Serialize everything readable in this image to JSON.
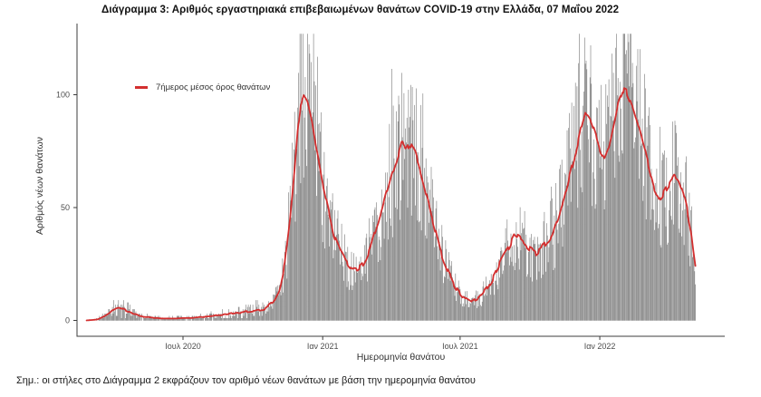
{
  "title": "Διάγραμμα 3: Αριθμός εργαστηριακά επιβεβαιωμένων θανάτων COVID-19 στην Ελλάδα, 07 Μαΐου 2022",
  "note": "Σημ.: οι στήλες στο Διάγραμμα 2 εκφράζουν τον αριθμό νέων θανάτων με βάση την ημερομηνία θανάτου",
  "chart_data": {
    "type": "bar",
    "xlabel": "Ημερομηνία θανάτου",
    "ylabel": "Αριθμός νέων θανάτων",
    "legend_label": "7ήμερος μέσος όρος θανάτων",
    "legend_position": "top-left-inside",
    "grid": false,
    "bar_color": "#7b7b7b",
    "line_color": "#d32f2f",
    "axis_color": "#3c3c3c",
    "tick_label_color": "#4d4d4d",
    "y_ticks": [
      0,
      50,
      100
    ],
    "ylim": [
      0,
      130
    ],
    "x_ticks": [
      {
        "label": "Ιουλ 2020",
        "date": "2020-07-01"
      },
      {
        "label": "Ιαν 2021",
        "date": "2021-01-01"
      },
      {
        "label": "Ιουλ 2021",
        "date": "2021-07-01"
      },
      {
        "label": "Ιαν 2022",
        "date": "2022-01-01"
      }
    ],
    "date_range": [
      "2020-02-25",
      "2022-05-07"
    ],
    "series": [
      {
        "name": "daily-deaths-bars",
        "type": "bar",
        "description": "daily laboratory-confirmed COVID-19 deaths by date of death",
        "derived_from": "ma7_anchors",
        "noise": [
          0.55,
          1.45
        ],
        "max_value": 127,
        "seed": 7
      },
      {
        "name": "7day-moving-average",
        "type": "line",
        "anchors": [
          [
            "2020-02-25",
            0
          ],
          [
            "2020-03-10",
            0.4
          ],
          [
            "2020-03-18",
            1.6
          ],
          [
            "2020-03-26",
            3.2
          ],
          [
            "2020-04-03",
            5
          ],
          [
            "2020-04-10",
            5.5
          ],
          [
            "2020-04-18",
            4.4
          ],
          [
            "2020-04-28",
            3
          ],
          [
            "2020-05-10",
            1.6
          ],
          [
            "2020-06-05",
            0.8
          ],
          [
            "2020-07-05",
            1
          ],
          [
            "2020-08-05",
            1.8
          ],
          [
            "2020-09-01",
            3
          ],
          [
            "2020-09-25",
            4
          ],
          [
            "2020-10-15",
            5
          ],
          [
            "2020-10-28",
            8
          ],
          [
            "2020-11-05",
            14
          ],
          [
            "2020-11-12",
            25
          ],
          [
            "2020-11-18",
            42
          ],
          [
            "2020-11-24",
            63
          ],
          [
            "2020-11-29",
            83
          ],
          [
            "2020-12-03",
            96
          ],
          [
            "2020-12-07",
            100
          ],
          [
            "2020-12-12",
            97
          ],
          [
            "2020-12-18",
            88
          ],
          [
            "2020-12-24",
            76
          ],
          [
            "2020-12-31",
            62
          ],
          [
            "2021-01-08",
            50
          ],
          [
            "2021-01-16",
            38
          ],
          [
            "2021-01-24",
            31
          ],
          [
            "2021-02-01",
            26
          ],
          [
            "2021-02-08",
            23
          ],
          [
            "2021-02-16",
            22.5
          ],
          [
            "2021-02-24",
            25
          ],
          [
            "2021-03-04",
            31
          ],
          [
            "2021-03-14",
            42
          ],
          [
            "2021-03-24",
            54
          ],
          [
            "2021-04-02",
            65
          ],
          [
            "2021-04-09",
            72
          ],
          [
            "2021-04-15",
            79
          ],
          [
            "2021-04-20",
            75
          ],
          [
            "2021-04-26",
            78
          ],
          [
            "2021-05-03",
            74
          ],
          [
            "2021-05-11",
            65
          ],
          [
            "2021-05-19",
            54
          ],
          [
            "2021-05-27",
            43
          ],
          [
            "2021-06-05",
            31
          ],
          [
            "2021-06-15",
            22
          ],
          [
            "2021-06-25",
            15
          ],
          [
            "2021-07-05",
            10.5
          ],
          [
            "2021-07-16",
            8
          ],
          [
            "2021-07-26",
            10
          ],
          [
            "2021-08-05",
            14
          ],
          [
            "2021-08-15",
            20
          ],
          [
            "2021-08-25",
            27
          ],
          [
            "2021-09-04",
            33
          ],
          [
            "2021-09-11",
            38
          ],
          [
            "2021-09-19",
            36
          ],
          [
            "2021-09-30",
            32
          ],
          [
            "2021-10-09",
            30
          ],
          [
            "2021-10-19",
            33
          ],
          [
            "2021-10-30",
            38
          ],
          [
            "2021-11-07",
            45
          ],
          [
            "2021-11-15",
            54
          ],
          [
            "2021-11-23",
            65
          ],
          [
            "2021-12-01",
            76
          ],
          [
            "2021-12-08",
            87
          ],
          [
            "2021-12-13",
            93
          ],
          [
            "2021-12-19",
            90
          ],
          [
            "2021-12-26",
            83
          ],
          [
            "2022-01-02",
            75
          ],
          [
            "2022-01-07",
            72
          ],
          [
            "2022-01-13",
            77
          ],
          [
            "2022-01-19",
            86
          ],
          [
            "2022-01-25",
            96
          ],
          [
            "2022-01-31",
            102
          ],
          [
            "2022-02-06",
            101
          ],
          [
            "2022-02-13",
            95
          ],
          [
            "2022-02-21",
            86
          ],
          [
            "2022-03-01",
            76
          ],
          [
            "2022-03-08",
            66
          ],
          [
            "2022-03-14",
            58
          ],
          [
            "2022-03-20",
            54
          ],
          [
            "2022-03-27",
            57
          ],
          [
            "2022-04-03",
            61
          ],
          [
            "2022-04-09",
            64
          ],
          [
            "2022-04-15",
            62
          ],
          [
            "2022-04-21",
            56
          ],
          [
            "2022-04-26",
            49
          ],
          [
            "2022-05-01",
            40
          ],
          [
            "2022-05-04",
            32
          ],
          [
            "2022-05-07",
            25
          ]
        ]
      }
    ]
  }
}
